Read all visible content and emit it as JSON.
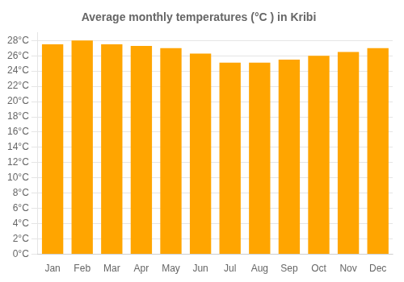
{
  "chart_data": {
    "type": "bar",
    "title": "Average monthly temperatures (°C ) in Kribi",
    "categories": [
      "Jan",
      "Feb",
      "Mar",
      "Apr",
      "May",
      "Jun",
      "Jul",
      "Aug",
      "Sep",
      "Oct",
      "Nov",
      "Dec"
    ],
    "values": [
      27.5,
      28.0,
      27.5,
      27.3,
      27.0,
      26.3,
      25.1,
      25.1,
      25.5,
      26.0,
      26.5,
      27.0
    ],
    "color": "#FFA500",
    "ylim": [
      0,
      29
    ],
    "yticks": [
      {
        "value": 0,
        "label": "0°C"
      },
      {
        "value": 2,
        "label": "2°C"
      },
      {
        "value": 4,
        "label": "4°C"
      },
      {
        "value": 6,
        "label": "6°C"
      },
      {
        "value": 8,
        "label": "8°C"
      },
      {
        "value": 10,
        "label": "10°C"
      },
      {
        "value": 12,
        "label": "12°C"
      },
      {
        "value": 14,
        "label": "14°C"
      },
      {
        "value": 16,
        "label": "16°C"
      },
      {
        "value": 18,
        "label": "18°C"
      },
      {
        "value": 20,
        "label": "20°C"
      },
      {
        "value": 22,
        "label": "22°C"
      },
      {
        "value": 24,
        "label": "24°C"
      },
      {
        "value": 26,
        "label": "26°C"
      },
      {
        "value": 28,
        "label": "28°C"
      }
    ],
    "grid": true
  }
}
